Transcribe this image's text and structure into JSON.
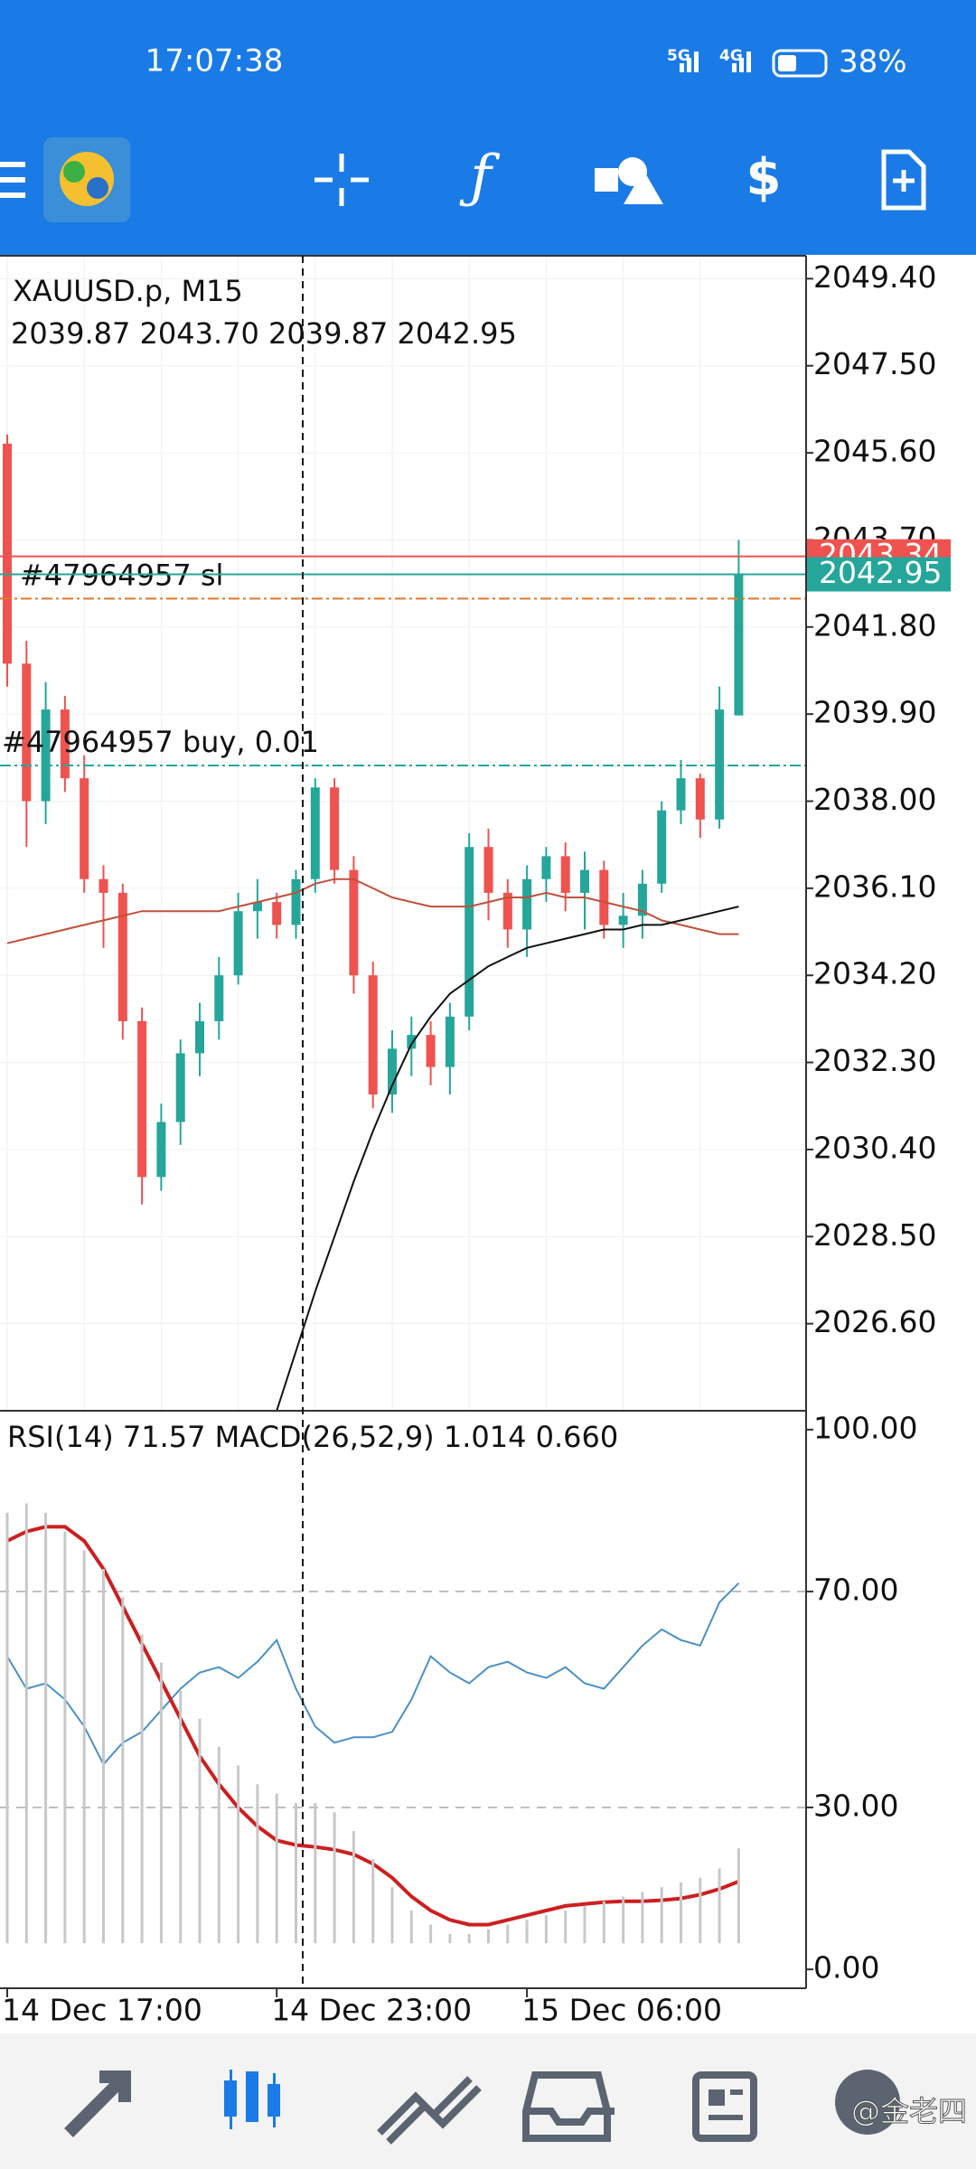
{
  "status_bar": {
    "time": "17:07:38",
    "network": [
      "5G",
      "4G"
    ],
    "battery": "38%"
  },
  "watermark": "@金老四",
  "chart_data": [
    {
      "type": "candlestick",
      "title": "XAUUSD.p, M15",
      "subtitle": "2039.87 2043.70 2039.87 2042.95",
      "open": [
        2045.8,
        2041.0,
        2038.0,
        2040.0,
        2038.5,
        2036.3,
        2036.0,
        2033.2,
        2029.8,
        2031.0,
        2032.5,
        2033.2,
        2034.2,
        2035.6,
        2035.8,
        2035.3,
        2036.3,
        2038.3,
        2036.5,
        2034.2,
        2031.6,
        2032.6,
        2032.9,
        2032.2,
        2033.3,
        2037.0,
        2036.0,
        2035.2,
        2036.3,
        2036.8,
        2036.0,
        2036.5,
        2035.3,
        2035.5,
        2036.2,
        2037.8,
        2038.5,
        2037.6,
        2039.87
      ],
      "high": [
        2046.0,
        2041.5,
        2040.6,
        2040.3,
        2039.0,
        2036.6,
        2036.2,
        2033.5,
        2031.4,
        2032.8,
        2033.6,
        2034.6,
        2036.0,
        2036.3,
        2036.0,
        2036.5,
        2038.5,
        2038.5,
        2036.8,
        2034.5,
        2033.0,
        2033.3,
        2033.2,
        2033.6,
        2037.3,
        2037.4,
        2036.3,
        2036.6,
        2037.0,
        2037.1,
        2036.9,
        2036.7,
        2036.0,
        2036.5,
        2038.0,
        2038.9,
        2038.6,
        2040.5,
        2043.7
      ],
      "low": [
        2040.5,
        2037.0,
        2037.5,
        2038.2,
        2036.0,
        2034.8,
        2032.8,
        2029.2,
        2029.5,
        2030.5,
        2032.0,
        2032.8,
        2034.0,
        2035.0,
        2035.0,
        2035.0,
        2036.0,
        2036.2,
        2033.8,
        2031.3,
        2031.2,
        2032.0,
        2031.8,
        2031.6,
        2033.0,
        2035.4,
        2034.8,
        2034.6,
        2035.8,
        2035.6,
        2035.2,
        2035.0,
        2034.8,
        2035.0,
        2036.0,
        2037.5,
        2037.2,
        2037.4,
        2039.87
      ],
      "close": [
        2041.0,
        2038.0,
        2040.0,
        2038.5,
        2036.3,
        2036.0,
        2033.2,
        2029.8,
        2031.0,
        2032.5,
        2033.2,
        2034.2,
        2035.6,
        2035.8,
        2035.3,
        2036.3,
        2038.3,
        2036.5,
        2034.2,
        2031.6,
        2032.6,
        2032.9,
        2032.2,
        2033.3,
        2037.0,
        2036.0,
        2035.2,
        2036.3,
        2036.8,
        2036.0,
        2036.5,
        2035.3,
        2035.5,
        2036.2,
        2037.8,
        2038.5,
        2037.6,
        2040.0,
        2042.95
      ],
      "up_color": "#26a69a",
      "down_color": "#ef5350",
      "series": [
        {
          "color": "#c0503a",
          "values": [
            2034.9,
            2035.0,
            2035.1,
            2035.2,
            2035.3,
            2035.4,
            2035.5,
            2035.6,
            2035.6,
            2035.6,
            2035.6,
            2035.6,
            2035.7,
            2035.8,
            2035.9,
            2036.0,
            2036.2,
            2036.3,
            2036.3,
            2036.1,
            2035.9,
            2035.8,
            2035.7,
            2035.7,
            2035.7,
            2035.8,
            2035.9,
            2035.9,
            2036.0,
            2035.9,
            2035.9,
            2035.8,
            2035.7,
            2035.6,
            2035.4,
            2035.3,
            2035.2,
            2035.1,
            2035.1
          ]
        },
        {
          "color": "#111111",
          "values": [
            null,
            null,
            null,
            null,
            null,
            null,
            null,
            null,
            null,
            null,
            null,
            null,
            null,
            null,
            2024.7,
            2026.0,
            2027.3,
            2028.5,
            2029.7,
            2030.8,
            2031.8,
            2032.7,
            2033.3,
            2033.8,
            2034.1,
            2034.4,
            2034.6,
            2034.8,
            2034.9,
            2035.0,
            2035.1,
            2035.2,
            2035.2,
            2035.3,
            2035.3,
            2035.4,
            2035.5,
            2035.6,
            2035.7
          ]
        }
      ],
      "ylim": [
        2024.7,
        2049.9
      ],
      "yticks": [
        {
          "value": 2049.4,
          "label": "2049.40"
        },
        {
          "value": 2047.5,
          "label": "2047.50"
        },
        {
          "value": 2045.6,
          "label": "2045.60"
        },
        {
          "value": 2043.7,
          "label": "2043.70"
        },
        {
          "value": 2041.8,
          "label": "2041.80"
        },
        {
          "value": 2039.9,
          "label": "2039.90"
        },
        {
          "value": 2038,
          "label": "2038.00"
        },
        {
          "value": 2036.1,
          "label": "2036.10"
        },
        {
          "value": 2034.2,
          "label": "2034.20"
        },
        {
          "value": 2032.3,
          "label": "2032.30"
        },
        {
          "value": 2030.4,
          "label": "2030.40"
        },
        {
          "value": 2028.5,
          "label": "2028.50"
        },
        {
          "value": 2026.6,
          "label": "2026.60"
        }
      ],
      "grid": true,
      "levels": [
        {
          "label": "#47964957 sl",
          "value": 2042.42,
          "color": "#e0782a"
        },
        {
          "label": "#47964957 buy, 0.01",
          "value": 2038.78,
          "color": "#26a69a"
        }
      ],
      "price_marks": [
        {
          "value": 2043.34,
          "label": "2043.34",
          "color": "#ef5350"
        },
        {
          "value": 2042.95,
          "label": "2042.95",
          "color": "#26a69a"
        }
      ]
    },
    {
      "type": "indicator",
      "title": "RSI(14) 71.57 MACD(26,52,9) 1.014 0.660",
      "categories": [
        "14 Dec 17:00",
        null,
        null,
        null,
        null,
        null,
        null,
        null,
        null,
        null,
        null,
        null,
        null,
        null,
        "14 Dec 23:00",
        null,
        null,
        null,
        null,
        null,
        null,
        null,
        null,
        null,
        null,
        null,
        null,
        "15 Dec 06:00",
        null,
        null,
        null,
        null,
        null,
        null,
        null,
        null,
        null,
        null,
        null
      ],
      "ylim": [
        -3.5,
        103.5
      ],
      "yticks": [
        {
          "value": 100,
          "label": "100.00"
        },
        {
          "value": 70,
          "label": "70.00"
        },
        {
          "value": 30,
          "label": "30.00"
        },
        {
          "value": 0,
          "label": "0.00"
        }
      ],
      "y2lim": [
        -0.48,
        5.69
      ],
      "series": [
        {
          "color": "#4a90c8",
          "values": [
            58,
            52,
            53,
            50,
            45,
            38,
            42,
            44,
            48,
            52,
            55,
            56,
            54,
            57,
            61,
            52,
            45,
            42,
            43,
            43,
            44,
            50,
            58,
            55,
            53,
            56,
            57,
            55,
            54,
            56,
            53,
            52,
            56,
            60,
            63,
            61,
            60,
            68,
            71.57
          ]
        },
        {
          "color": "#cc1f1f",
          "axis": "y2",
          "values": [
            4.3,
            4.4,
            4.45,
            4.45,
            4.3,
            4.0,
            3.6,
            3.2,
            2.8,
            2.4,
            2.0,
            1.7,
            1.45,
            1.25,
            1.1,
            1.05,
            1.03,
            1.0,
            0.95,
            0.85,
            0.7,
            0.5,
            0.35,
            0.25,
            0.2,
            0.2,
            0.25,
            0.3,
            0.35,
            0.4,
            0.42,
            0.44,
            0.45,
            0.45,
            0.46,
            0.48,
            0.52,
            0.58,
            0.66
          ]
        },
        {
          "type": "bar",
          "color": "#c8c8c8",
          "axis": "y2",
          "values": [
            4.6,
            4.7,
            4.6,
            4.4,
            4.2,
            4.0,
            3.7,
            3.3,
            3.0,
            2.7,
            2.4,
            2.1,
            1.9,
            1.7,
            1.6,
            1.5,
            1.5,
            1.4,
            1.2,
            0.9,
            0.6,
            0.35,
            0.2,
            0.1,
            0.1,
            0.15,
            0.2,
            0.25,
            0.3,
            0.35,
            0.4,
            0.45,
            0.5,
            0.55,
            0.6,
            0.65,
            0.7,
            0.8,
            1.014
          ]
        }
      ]
    }
  ]
}
